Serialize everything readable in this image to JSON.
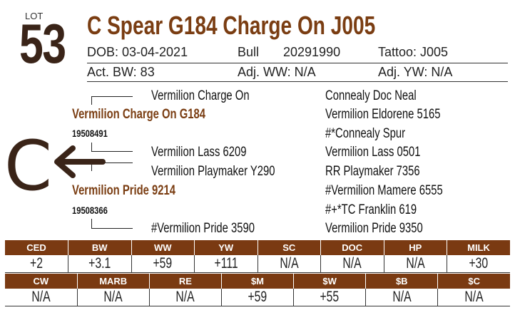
{
  "lot": {
    "label": "LOT",
    "number": "53"
  },
  "title": "C Spear G184 Charge On J005",
  "info": {
    "dob": "DOB: 03-04-2021",
    "sex": "Bull",
    "reg": "20291990",
    "tattoo": "Tattoo: J005",
    "act_bw": "Act. BW: 83",
    "adj_ww": "Adj. WW: N/A",
    "adj_yw": "Adj. YW: N/A"
  },
  "pedigree": {
    "sire": {
      "name": "Vermilion Charge On G184",
      "reg": "19508491"
    },
    "dam": {
      "name": "Vermilion Pride 9214",
      "reg": "19508366"
    },
    "sire_sire": "Vermilion Charge On",
    "sire_dam": "Vermilion Lass 6209",
    "dam_sire": "Vermilion Playmaker Y290",
    "dam_dam": "#Vermilion Pride 3590",
    "third_gen": [
      "Connealy Doc Neal",
      "Vermilion Eldorene 5165",
      "#*Connealy Spur",
      "Vermilion Lass 0501",
      "RR Playmaker 7356",
      "#Vermilion Mamere 6555",
      "#+*TC Franklin 619",
      "Vermilion Pride 9350"
    ],
    "symbol": "C"
  },
  "epd_row1": {
    "headers": [
      "CED",
      "BW",
      "WW",
      "YW",
      "SC",
      "DOC",
      "HP",
      "MILK"
    ],
    "values": [
      "+2",
      "+3.1",
      "+59",
      "+111",
      "N/A",
      "N/A",
      "N/A",
      "+30"
    ]
  },
  "epd_row2": {
    "headers": [
      "CW",
      "MARB",
      "RE",
      "$M",
      "$W",
      "$B",
      "$C"
    ],
    "values": [
      "N/A",
      "N/A",
      "N/A",
      "+59",
      "+55",
      "N/A",
      "N/A"
    ]
  },
  "colors": {
    "brand": "#7a3d12",
    "lot": "#3a2418"
  }
}
